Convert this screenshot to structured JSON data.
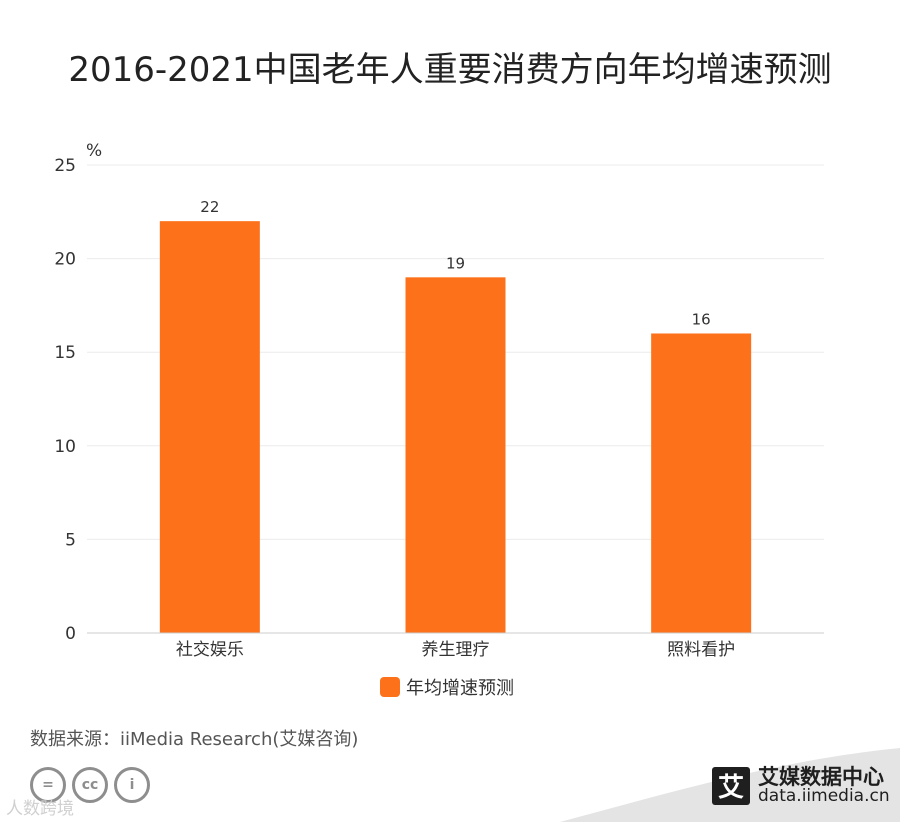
{
  "title": "2016-2021中国老年人重要消费方向年均增速预测",
  "colors": {
    "bar": "#fc711a",
    "grid": "#ececec",
    "axis": "#cccccc",
    "text": "#333333"
  },
  "chart_data": {
    "type": "bar",
    "title": "2016-2021中国老年人重要消费方向年均增速预测",
    "categories": [
      "社交娱乐",
      "养生理疗",
      "照料看护"
    ],
    "series": [
      {
        "name": "年均增速预测",
        "values": [
          22,
          19,
          16
        ]
      }
    ],
    "data_labels": [
      "22",
      "19",
      "16"
    ],
    "y_unit": "%",
    "ylim": [
      0,
      25
    ],
    "yticks": [
      "0",
      "5",
      "10",
      "15",
      "20",
      "25"
    ],
    "grid": true,
    "legend": "bottom"
  },
  "legend": {
    "label": "年均增速预测"
  },
  "source": "数据来源：iiMedia Research(艾媒咨询)",
  "cc_icons": [
    "equal-icon",
    "cc-icon",
    "person-icon"
  ],
  "watermark": "人数跨境",
  "brand": {
    "logo_char": "艾",
    "name": "艾媒数据中心",
    "url": "data.iimedia.cn"
  }
}
